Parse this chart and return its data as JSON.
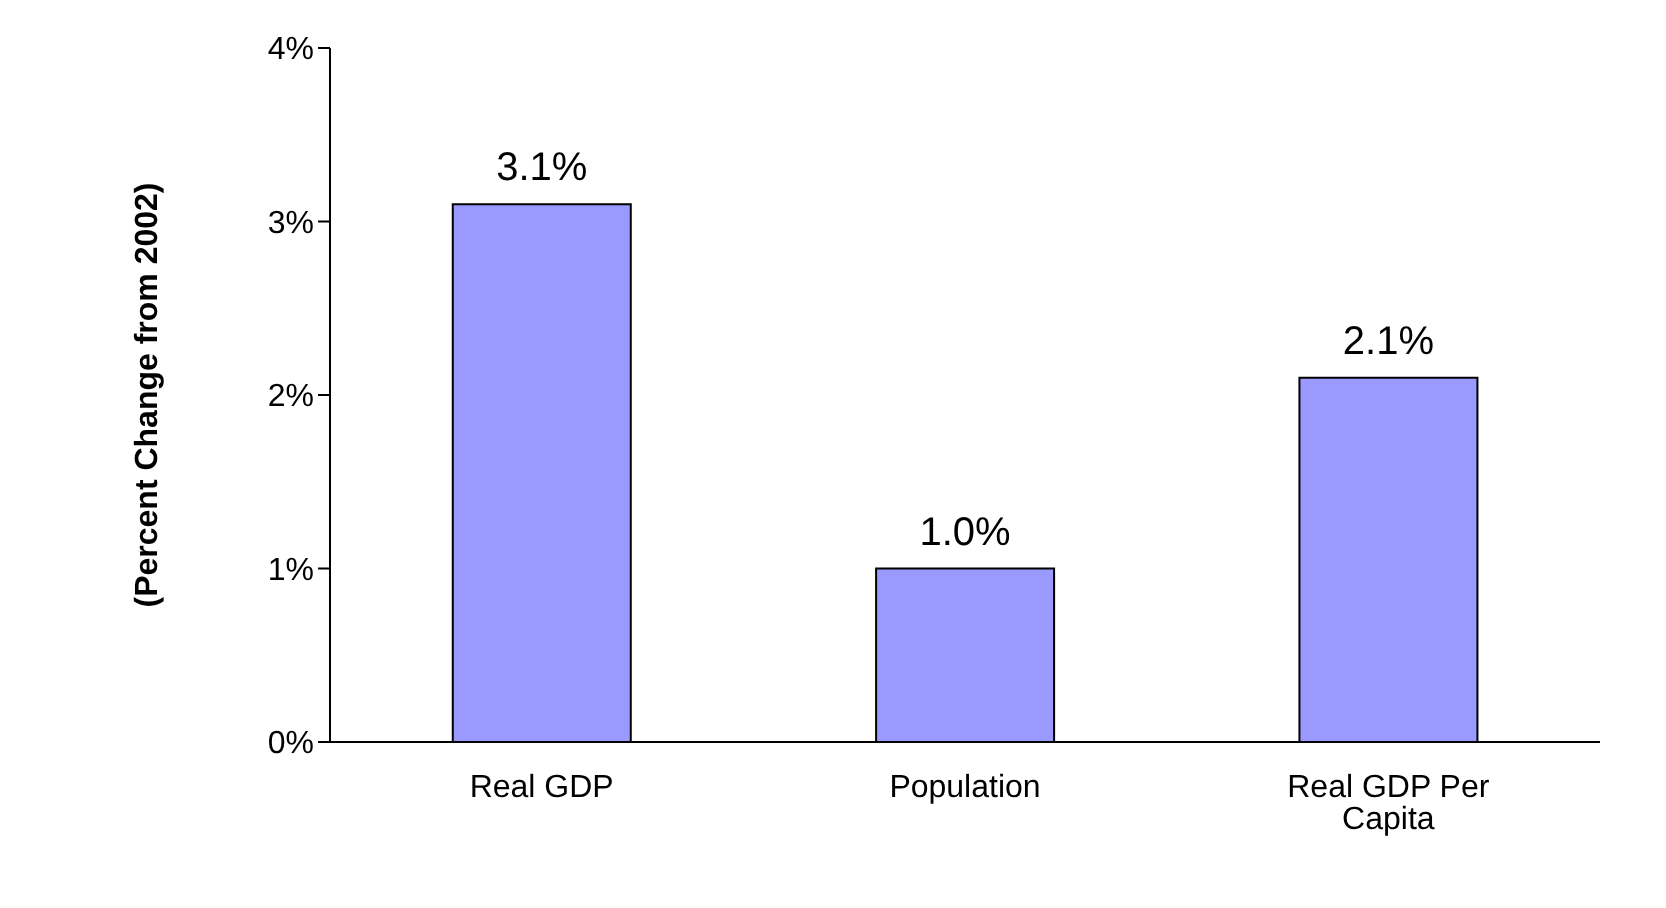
{
  "chart_data": {
    "type": "bar",
    "ylabel": "(Percent Change from 2002)",
    "categories": [
      "Real GDP",
      "Population",
      "Real GDP Per Capita"
    ],
    "values": [
      3.1,
      1.0,
      2.1
    ],
    "value_labels": [
      "3.1%",
      "1.0%",
      "2.1%"
    ],
    "color": "#9999ff",
    "ylim": [
      0,
      4
    ],
    "yticks": [
      {
        "value": 0,
        "label": "0%"
      },
      {
        "value": 1,
        "label": "1%"
      },
      {
        "value": 2,
        "label": "2%"
      },
      {
        "value": 3,
        "label": "3%"
      },
      {
        "value": 4,
        "label": "4%"
      }
    ],
    "grid": false,
    "legend": false
  }
}
